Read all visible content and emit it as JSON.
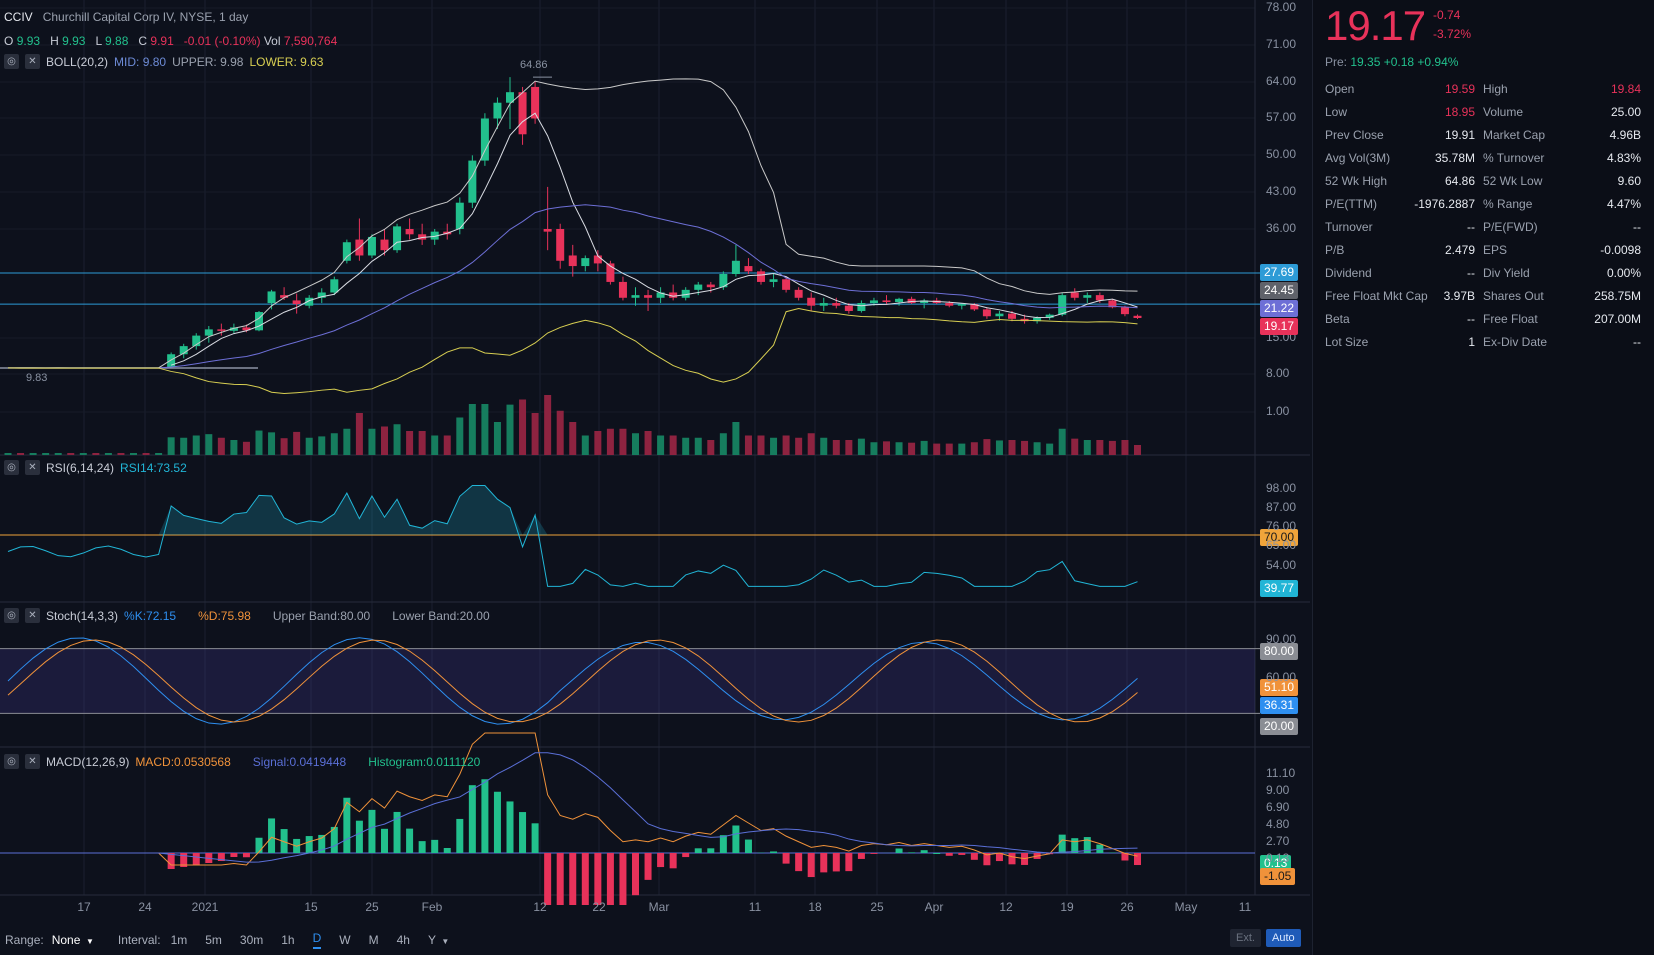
{
  "symbol_line": {
    "ticker": "CCIV",
    "description": "Churchill Capital Corp IV, NYSE, 1 day"
  },
  "ohlc_line": {
    "o_label": "O",
    "o_value": "9.93",
    "h_label": "H",
    "h_value": "9.93",
    "l_label": "L",
    "l_value": "9.88",
    "c_label": "C",
    "c_value": "9.91",
    "change": "-0.01 (-0.10%)",
    "vol_label": "Vol",
    "vol_value": "7,590,764"
  },
  "boll": {
    "name": "BOLL(20,2)",
    "mid": "MID: 9.80",
    "upper": "UPPER: 9.98",
    "lower": "LOWER: 9.63"
  },
  "rsi": {
    "name": "RSI(6,14,24)",
    "value": "RSI14:73.52"
  },
  "stoch": {
    "name": "Stoch(14,3,3)",
    "k": "%K:72.15",
    "d": "%D:75.98",
    "upper": "Upper Band:80.00",
    "lower": "Lower Band:20.00"
  },
  "macd": {
    "name": "MACD(12,26,9)",
    "macd": "MACD:0.0530568",
    "signal": "Signal:0.0419448",
    "hist": "Histogram:0.0111120"
  },
  "price_axis": [
    "78.00",
    "71.00",
    "64.00",
    "57.00",
    "50.00",
    "43.00",
    "36.00",
    "15.00",
    "8.00",
    "1.00"
  ],
  "price_tags": {
    "line_high": "27.69",
    "upper_band": "24.45",
    "mid_band": "21.22",
    "last": "19.17"
  },
  "peak_label": "64.86",
  "base_label": "9.83",
  "rsi_axis": [
    "98.00",
    "87.00",
    "76.00",
    "65.00",
    "54.00"
  ],
  "rsi_tags": {
    "level": "70.00",
    "value": "39.77"
  },
  "stoch_axis": [
    "90.00",
    "60.00"
  ],
  "stoch_tags": {
    "upper": "80.00",
    "d": "51.10",
    "k": "36.31",
    "lower": "20.00"
  },
  "macd_axis": [
    "11.10",
    "9.00",
    "6.90",
    "4.80",
    "2.70",
    "0.13"
  ],
  "macd_tags": {
    "top": "0.13",
    "value": "-1.05"
  },
  "x_axis": [
    "17",
    "24",
    "2021",
    "15",
    "25",
    "Feb",
    "12",
    "22",
    "Mar",
    "11",
    "18",
    "25",
    "Apr",
    "12",
    "19",
    "26",
    "May",
    "11"
  ],
  "bottom_bar": {
    "range_label": "Range:",
    "range_value": "None",
    "interval_label": "Interval:",
    "intervals": [
      "1m",
      "5m",
      "30m",
      "1h",
      "D",
      "W",
      "M",
      "4h",
      "Y"
    ],
    "active_interval": "D",
    "ext": "Ext.",
    "auto": "Auto"
  },
  "quote": {
    "last": "19.17",
    "change": "-0.74",
    "change_pct": "-3.72%",
    "pre_label": "Pre:",
    "pre_value": "19.35 +0.18 +0.94%",
    "stats": [
      {
        "l1": "Open",
        "v1": "19.59",
        "l2": "High",
        "v2": "19.84"
      },
      {
        "l1": "Low",
        "v1": "18.95",
        "l2": "Volume",
        "v2": "25.00"
      },
      {
        "l1": "Prev Close",
        "v1": "19.91",
        "l2": "Market Cap",
        "v2": "4.96B"
      },
      {
        "l1": "Avg Vol(3M)",
        "v1": "35.78M",
        "l2": "% Turnover",
        "v2": "4.83%"
      },
      {
        "l1": "52 Wk High",
        "v1": "64.86",
        "l2": "52 Wk Low",
        "v2": "9.60"
      },
      {
        "l1": "P/E(TTM)",
        "v1": "-1976.2887",
        "l2": "% Range",
        "v2": "4.47%"
      },
      {
        "l1": "Turnover",
        "v1": "--",
        "l2": "P/E(FWD)",
        "v2": "--"
      },
      {
        "l1": "P/B",
        "v1": "2.479",
        "l2": "EPS",
        "v2": "-0.0098"
      },
      {
        "l1": "Dividend",
        "v1": "--",
        "l2": "Div Yield",
        "v2": "0.00%"
      },
      {
        "l1": "Free Float Mkt Cap",
        "v1": "3.97B",
        "l2": "Shares Out",
        "v2": "258.75M"
      },
      {
        "l1": "Beta",
        "v1": "--",
        "l2": "Free Float",
        "v2": "207.00M"
      },
      {
        "l1": "Lot Size",
        "v1": "1",
        "l2": "Ex-Div Date",
        "v2": "--"
      }
    ]
  },
  "colors": {
    "up": "#22c08d",
    "down": "#e8325a",
    "boll_mid": "#6d6fd6",
    "boll_upper": "#c9c9c9",
    "boll_lower": "#d8cf52",
    "rsi": "#21b5d6",
    "stoch_k": "#2e8ff0",
    "stoch_d": "#f0923a",
    "macd": "#f0923a",
    "signal": "#5a6fd6"
  },
  "chart_data": {
    "type": "candlestick",
    "candles": [
      {
        "o": 9.8,
        "h": 9.9,
        "l": 9.7,
        "c": 9.85
      },
      {
        "o": 9.85,
        "h": 9.95,
        "l": 9.75,
        "c": 9.8
      },
      {
        "o": 9.8,
        "h": 9.9,
        "l": 9.7,
        "c": 9.82
      },
      {
        "o": 9.82,
        "h": 9.92,
        "l": 9.75,
        "c": 9.83
      },
      {
        "o": 9.83,
        "h": 9.9,
        "l": 9.76,
        "c": 9.84
      },
      {
        "o": 9.84,
        "h": 9.95,
        "l": 9.78,
        "c": 9.83
      },
      {
        "o": 9.83,
        "h": 9.9,
        "l": 9.75,
        "c": 9.84
      },
      {
        "o": 9.84,
        "h": 9.93,
        "l": 9.8,
        "c": 9.83
      },
      {
        "o": 9.83,
        "h": 9.9,
        "l": 9.79,
        "c": 9.85
      },
      {
        "o": 9.85,
        "h": 9.92,
        "l": 9.78,
        "c": 9.83
      },
      {
        "o": 9.83,
        "h": 9.9,
        "l": 9.8,
        "c": 9.84
      },
      {
        "o": 9.84,
        "h": 9.9,
        "l": 9.8,
        "c": 9.83
      },
      {
        "o": 9.83,
        "h": 9.9,
        "l": 9.8,
        "c": 9.85
      },
      {
        "o": 10.0,
        "h": 12.5,
        "l": 9.9,
        "c": 12.2
      },
      {
        "o": 12.2,
        "h": 14.0,
        "l": 11.5,
        "c": 13.6
      },
      {
        "o": 13.6,
        "h": 16.0,
        "l": 13.0,
        "c": 15.5
      },
      {
        "o": 15.5,
        "h": 17.5,
        "l": 14.2,
        "c": 16.8
      },
      {
        "o": 16.8,
        "h": 18.0,
        "l": 15.5,
        "c": 16.5
      },
      {
        "o": 16.5,
        "h": 18.0,
        "l": 16.0,
        "c": 17.2
      },
      {
        "o": 17.2,
        "h": 17.8,
        "l": 16.2,
        "c": 16.6
      },
      {
        "o": 16.6,
        "h": 20.5,
        "l": 16.4,
        "c": 20.3
      },
      {
        "o": 22.0,
        "h": 24.5,
        "l": 20.8,
        "c": 24.2
      },
      {
        "o": 23.5,
        "h": 25.0,
        "l": 22.6,
        "c": 23.0
      },
      {
        "o": 22.5,
        "h": 23.8,
        "l": 20.0,
        "c": 21.8
      },
      {
        "o": 21.5,
        "h": 23.5,
        "l": 21.0,
        "c": 23.0
      },
      {
        "o": 23.0,
        "h": 24.8,
        "l": 22.0,
        "c": 24.0
      },
      {
        "o": 24.0,
        "h": 27.0,
        "l": 23.5,
        "c": 26.5
      },
      {
        "o": 30.0,
        "h": 34.0,
        "l": 29.5,
        "c": 33.5
      },
      {
        "o": 34.0,
        "h": 38.0,
        "l": 30.0,
        "c": 31.0
      },
      {
        "o": 31.0,
        "h": 35.0,
        "l": 30.5,
        "c": 34.5
      },
      {
        "o": 34.0,
        "h": 36.0,
        "l": 31.0,
        "c": 32.0
      },
      {
        "o": 32.0,
        "h": 37.0,
        "l": 31.5,
        "c": 36.5
      },
      {
        "o": 36.0,
        "h": 38.0,
        "l": 34.0,
        "c": 35.0
      },
      {
        "o": 35.0,
        "h": 37.0,
        "l": 33.0,
        "c": 34.0
      },
      {
        "o": 34.0,
        "h": 36.0,
        "l": 33.0,
        "c": 35.5
      },
      {
        "o": 35.5,
        "h": 37.0,
        "l": 34.0,
        "c": 35.0
      },
      {
        "o": 36.0,
        "h": 42.0,
        "l": 35.0,
        "c": 41.0
      },
      {
        "o": 41.0,
        "h": 50.0,
        "l": 40.0,
        "c": 49.0
      },
      {
        "o": 49.0,
        "h": 58.0,
        "l": 48.0,
        "c": 57.0
      },
      {
        "o": 57.0,
        "h": 61.0,
        "l": 55.0,
        "c": 60.0
      },
      {
        "o": 60.0,
        "h": 64.86,
        "l": 55.0,
        "c": 62.0
      },
      {
        "o": 62.0,
        "h": 63.0,
        "l": 52.0,
        "c": 54.0
      },
      {
        "o": 63.0,
        "h": 64.0,
        "l": 56.0,
        "c": 57.0
      },
      {
        "o": 36.0,
        "h": 44.0,
        "l": 32.0,
        "c": 35.5
      },
      {
        "o": 36.0,
        "h": 37.0,
        "l": 28.5,
        "c": 30.0
      },
      {
        "o": 31.0,
        "h": 33.0,
        "l": 27.0,
        "c": 29.0
      },
      {
        "o": 29.0,
        "h": 31.0,
        "l": 28.0,
        "c": 30.5
      },
      {
        "o": 31.0,
        "h": 32.0,
        "l": 28.0,
        "c": 29.5
      },
      {
        "o": 29.5,
        "h": 30.0,
        "l": 25.5,
        "c": 26.0
      },
      {
        "o": 26.0,
        "h": 27.0,
        "l": 22.5,
        "c": 23.0
      },
      {
        "o": 23.0,
        "h": 25.0,
        "l": 21.5,
        "c": 23.5
      },
      {
        "o": 23.5,
        "h": 24.5,
        "l": 20.5,
        "c": 23.0
      },
      {
        "o": 23.0,
        "h": 25.0,
        "l": 22.0,
        "c": 24.0
      },
      {
        "o": 24.0,
        "h": 25.5,
        "l": 22.5,
        "c": 23.0
      },
      {
        "o": 23.0,
        "h": 25.0,
        "l": 22.5,
        "c": 24.5
      },
      {
        "o": 24.5,
        "h": 26.0,
        "l": 23.5,
        "c": 25.5
      },
      {
        "o": 25.5,
        "h": 26.0,
        "l": 24.0,
        "c": 25.0
      },
      {
        "o": 25.0,
        "h": 28.0,
        "l": 24.5,
        "c": 27.5
      },
      {
        "o": 27.5,
        "h": 33.0,
        "l": 27.0,
        "c": 30.0
      },
      {
        "o": 29.0,
        "h": 30.5,
        "l": 27.5,
        "c": 28.0
      },
      {
        "o": 28.0,
        "h": 28.5,
        "l": 25.5,
        "c": 26.0
      },
      {
        "o": 26.0,
        "h": 27.5,
        "l": 25.0,
        "c": 26.5
      },
      {
        "o": 26.5,
        "h": 27.0,
        "l": 24.0,
        "c": 24.5
      },
      {
        "o": 24.5,
        "h": 25.0,
        "l": 22.5,
        "c": 23.0
      },
      {
        "o": 23.0,
        "h": 24.0,
        "l": 20.5,
        "c": 21.5
      },
      {
        "o": 21.5,
        "h": 23.0,
        "l": 20.5,
        "c": 22.0
      },
      {
        "o": 22.0,
        "h": 23.0,
        "l": 21.0,
        "c": 21.5
      },
      {
        "o": 21.5,
        "h": 22.0,
        "l": 20.0,
        "c": 20.5
      },
      {
        "o": 20.5,
        "h": 22.5,
        "l": 20.2,
        "c": 22.0
      },
      {
        "o": 22.0,
        "h": 23.0,
        "l": 21.5,
        "c": 22.5
      },
      {
        "o": 22.5,
        "h": 23.5,
        "l": 21.8,
        "c": 22.2
      },
      {
        "o": 22.2,
        "h": 23.0,
        "l": 21.5,
        "c": 22.8
      },
      {
        "o": 22.8,
        "h": 23.2,
        "l": 21.8,
        "c": 22.0
      },
      {
        "o": 22.0,
        "h": 22.8,
        "l": 21.0,
        "c": 22.5
      },
      {
        "o": 22.5,
        "h": 23.0,
        "l": 21.8,
        "c": 22.0
      },
      {
        "o": 22.0,
        "h": 22.4,
        "l": 21.2,
        "c": 21.5
      },
      {
        "o": 21.5,
        "h": 22.0,
        "l": 20.8,
        "c": 21.8
      },
      {
        "o": 21.8,
        "h": 22.0,
        "l": 20.5,
        "c": 20.8
      },
      {
        "o": 20.8,
        "h": 21.2,
        "l": 19.0,
        "c": 19.5
      },
      {
        "o": 19.5,
        "h": 20.5,
        "l": 18.6,
        "c": 20.0
      },
      {
        "o": 20.0,
        "h": 20.5,
        "l": 18.5,
        "c": 19.0
      },
      {
        "o": 19.0,
        "h": 19.8,
        "l": 18.0,
        "c": 18.5
      },
      {
        "o": 18.5,
        "h": 19.5,
        "l": 18.0,
        "c": 19.2
      },
      {
        "o": 19.2,
        "h": 20.0,
        "l": 18.8,
        "c": 19.8
      },
      {
        "o": 19.8,
        "h": 24.0,
        "l": 19.5,
        "c": 23.5
      },
      {
        "o": 24.0,
        "h": 24.8,
        "l": 22.5,
        "c": 23.0
      },
      {
        "o": 23.0,
        "h": 24.0,
        "l": 22.0,
        "c": 23.5
      },
      {
        "o": 23.5,
        "h": 24.0,
        "l": 22.0,
        "c": 22.5
      },
      {
        "o": 22.5,
        "h": 22.8,
        "l": 21.0,
        "c": 21.2
      },
      {
        "o": 21.2,
        "h": 21.5,
        "l": 19.5,
        "c": 19.9
      },
      {
        "o": 19.59,
        "h": 19.84,
        "l": 18.95,
        "c": 19.17
      }
    ],
    "y_axis": [
      "78.00",
      "71.00",
      "64.00",
      "57.00",
      "50.00",
      "43.00",
      "36.00",
      "15.00",
      "8.00",
      "1.00"
    ],
    "x_axis": [
      "17",
      "24",
      "2021",
      "15",
      "25",
      "Feb",
      "12",
      "22",
      "Mar",
      "11",
      "18",
      "25",
      "Apr",
      "12",
      "19",
      "26",
      "May",
      "11"
    ]
  }
}
